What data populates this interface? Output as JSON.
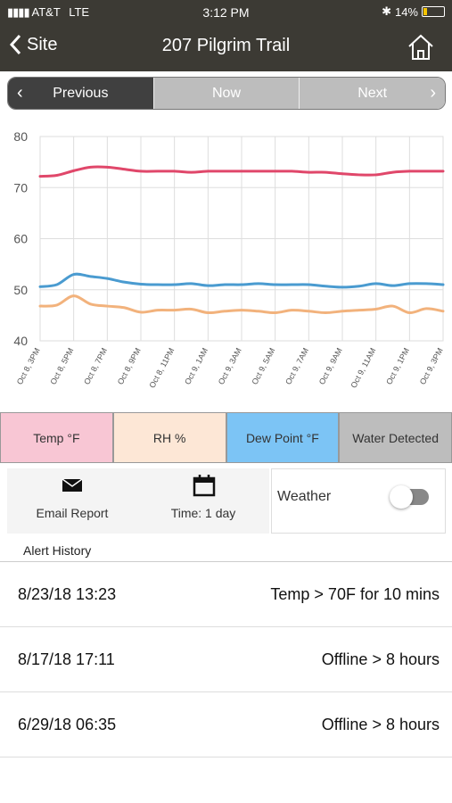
{
  "status_bar": {
    "carrier": "AT&T",
    "network": "LTE",
    "time": "3:12 PM",
    "battery": "14%"
  },
  "nav": {
    "back": "Site",
    "title": "207 Pilgrim Trail"
  },
  "segments": [
    "Previous",
    "Now",
    "Next"
  ],
  "chart_data": {
    "type": "line",
    "categories": [
      "Oct 8, 3PM",
      null,
      "Oct 8, 5PM",
      null,
      "Oct 8, 7PM",
      null,
      "Oct 8, 9PM",
      null,
      "Oct 8, 11PM",
      null,
      "Oct 9, 1AM",
      null,
      "Oct 9, 3AM",
      null,
      "Oct 9, 5AM",
      null,
      "Oct 9, 7AM",
      null,
      "Oct 9, 9AM",
      null,
      "Oct 9, 11AM",
      null,
      "Oct 9, 1PM",
      null,
      "Oct 9, 3PM"
    ],
    "series": [
      {
        "name": "Temp °F",
        "color": "#e0476a",
        "values": [
          72.2,
          72.4,
          73.3,
          74.0,
          74.0,
          73.6,
          73.2,
          73.2,
          73.2,
          73.0,
          73.2,
          73.2,
          73.2,
          73.2,
          73.2,
          73.2,
          73.0,
          73.0,
          72.7,
          72.5,
          72.5,
          73.0,
          73.2,
          73.2,
          73.2
        ]
      },
      {
        "name": "RH %",
        "color": "#f2b27c",
        "values": [
          46.8,
          47.0,
          48.8,
          47.2,
          46.8,
          46.5,
          45.6,
          46.0,
          46.0,
          46.2,
          45.5,
          45.8,
          46.0,
          45.8,
          45.5,
          46.0,
          45.8,
          45.5,
          45.8,
          46.0,
          46.2,
          46.8,
          45.5,
          46.3,
          45.8
        ]
      },
      {
        "name": "Dew Point °F",
        "color": "#4a9bd0",
        "values": [
          50.6,
          51.0,
          53.0,
          52.6,
          52.2,
          51.5,
          51.1,
          51.0,
          51.0,
          51.2,
          50.8,
          51.0,
          51.0,
          51.2,
          51.0,
          51.0,
          51.0,
          50.7,
          50.5,
          50.7,
          51.2,
          50.8,
          51.2,
          51.2,
          51.0
        ]
      }
    ],
    "ylim": [
      40,
      80
    ],
    "yticks": [
      40,
      50,
      60,
      70,
      80
    ],
    "grid": true
  },
  "chart_toggles": [
    "Water Detected"
  ],
  "toolbar": {
    "email": "Email Report",
    "time": "Time: 1 day",
    "weather": "Weather"
  },
  "alert_history": {
    "title": "Alert History",
    "rows": [
      [
        "8/23/18 13:23",
        "Temp > 70F for 10 mins"
      ],
      [
        "8/17/18 17:11",
        "Offline > 8 hours"
      ],
      [
        "6/29/18 06:35",
        "Offline > 8 hours"
      ]
    ]
  }
}
